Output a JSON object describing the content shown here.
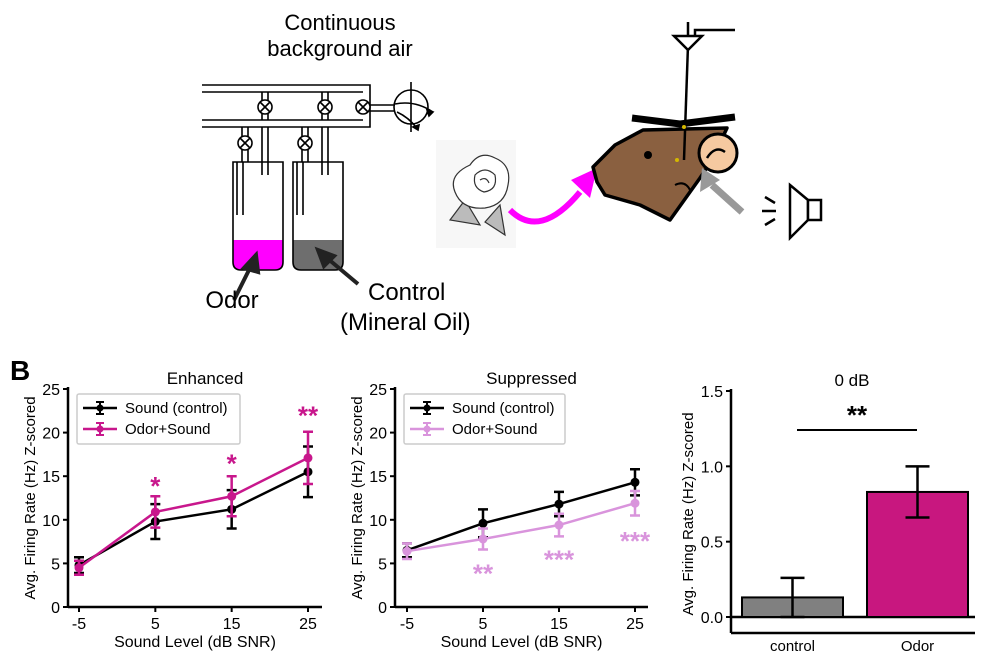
{
  "panel_a": {
    "air_label_line1": "Continuous",
    "air_label_line2": "background air",
    "odor_label": "Odor",
    "control_label_line1": "Control",
    "control_label_line2": "(Mineral Oil)",
    "colors": {
      "odor": "#ff00ff",
      "control_oil": "#6e6e6e",
      "mouse": "#8a6040",
      "ear": "#f5c9a0",
      "sound_arrow": "#999999"
    }
  },
  "panel_b_label": "B",
  "chart_data": [
    {
      "type": "line",
      "title": "Enhanced",
      "xlabel": "Sound Level (dB SNR)",
      "ylabel": "Avg. Firing Rate (Hz) Z-scored",
      "x": [
        -5,
        5,
        15,
        25
      ],
      "x_ticks": [
        "-5",
        "5",
        "15",
        "25"
      ],
      "y_ticks": [
        "0",
        "5",
        "10",
        "15",
        "20",
        "25"
      ],
      "ylim": [
        0,
        25
      ],
      "legend": "top-left",
      "series": [
        {
          "name": "Sound (control)",
          "color": "#000000",
          "values": [
            4.8,
            9.8,
            11.2,
            15.5
          ],
          "errors": [
            0.9,
            2.0,
            2.2,
            2.9
          ]
        },
        {
          "name": "Odor+Sound",
          "color": "#c8178c",
          "values": [
            4.5,
            10.9,
            12.7,
            17.1
          ],
          "errors": [
            0.8,
            1.8,
            2.3,
            3.0
          ]
        }
      ],
      "significance": [
        {
          "x": 5,
          "label": "*",
          "y": 14.2
        },
        {
          "x": 15,
          "label": "*",
          "y": 16.8
        },
        {
          "x": 25,
          "label": "**",
          "y": 22.3
        }
      ],
      "significance_color": "#c8178c"
    },
    {
      "type": "line",
      "title": "Suppressed",
      "xlabel": "Sound Level (dB SNR)",
      "ylabel": "Avg. Firing Rate (Hz) Z-scored",
      "x": [
        -5,
        5,
        15,
        25
      ],
      "x_ticks": [
        "-5",
        "5",
        "15",
        "25"
      ],
      "y_ticks": [
        "0",
        "5",
        "10",
        "15",
        "20",
        "25"
      ],
      "ylim": [
        0,
        25
      ],
      "legend": "top-left",
      "series": [
        {
          "name": "Sound (control)",
          "color": "#000000",
          "values": [
            6.5,
            9.6,
            11.8,
            14.3
          ],
          "errors": [
            0.8,
            1.6,
            1.4,
            1.5
          ]
        },
        {
          "name": "Odor+Sound",
          "color": "#d994dc",
          "values": [
            6.4,
            7.8,
            9.4,
            11.9
          ],
          "errors": [
            0.9,
            1.2,
            1.3,
            1.4
          ]
        }
      ],
      "significance": [
        {
          "x": 5,
          "label": "**",
          "y": 4.2
        },
        {
          "x": 15,
          "label": "***",
          "y": 5.8
        },
        {
          "x": 25,
          "label": "***",
          "y": 7.9
        }
      ],
      "significance_color": "#d994dc"
    },
    {
      "type": "bar",
      "title": "0 dB",
      "ylabel": "Avg. Firing Rate (Hz) Z-scored",
      "categories": [
        "control",
        "Odor"
      ],
      "values": [
        0.13,
        0.83
      ],
      "errors": [
        0.13,
        0.17
      ],
      "colors": [
        "#808080",
        "#c8177f"
      ],
      "y_ticks": [
        "0.0",
        "0.5",
        "1.0",
        "1.5"
      ],
      "ylim": [
        0,
        1.5
      ],
      "significance": {
        "label": "**",
        "between": [
          "control",
          "Odor"
        ]
      }
    }
  ]
}
